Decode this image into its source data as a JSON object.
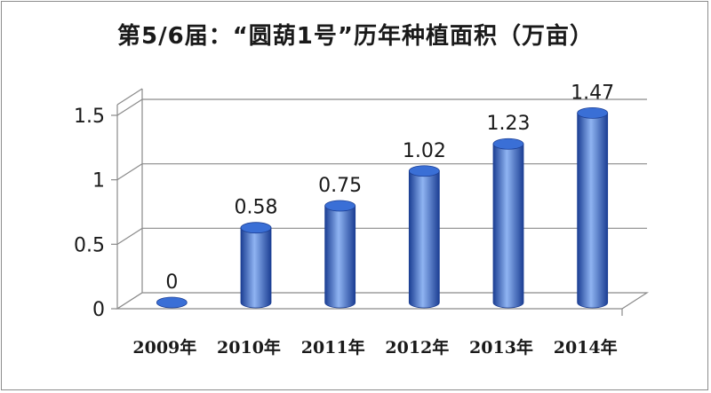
{
  "chart_data": {
    "type": "bar",
    "title": "第5/6届：“圆葫1号”历年种植面积（万亩）",
    "categories": [
      "2009年",
      "2010年",
      "2011年",
      "2012年",
      "2013年",
      "2014年"
    ],
    "values": [
      0,
      0.58,
      0.75,
      1.02,
      1.23,
      1.47
    ],
    "data_labels": [
      "0",
      "0.58",
      "0.75",
      "1.02",
      "1.23",
      "1.47"
    ],
    "ylim": [
      0,
      1.5
    ],
    "yticks": [
      0,
      0.5,
      1,
      1.5
    ],
    "ytick_labels": [
      "0",
      "0.5",
      "1",
      "1.5"
    ],
    "grid": true,
    "legend": "none",
    "style": "3d-cylinder",
    "bar_color": "#3a6fd6",
    "bar_highlight": "#8fb4f2",
    "bar_shadow": "#1c3f94"
  }
}
